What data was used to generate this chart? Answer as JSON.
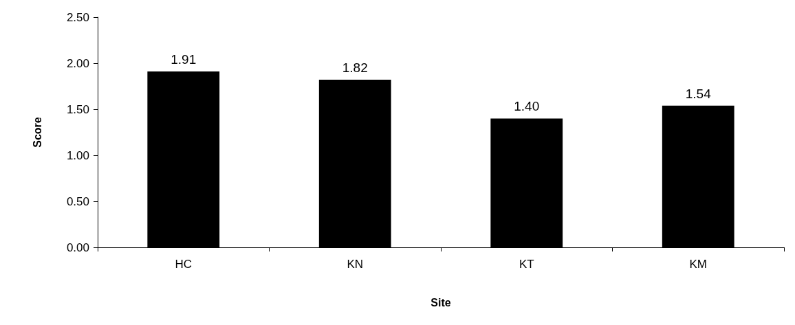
{
  "chart_data": {
    "type": "bar",
    "xlabel": "Site",
    "ylabel": "Score",
    "categories": [
      "HC",
      "KN",
      "KT",
      "KM"
    ],
    "values": [
      1.91,
      1.82,
      1.4,
      1.54
    ],
    "value_labels": [
      "1.91",
      "1.82",
      "1.40",
      "1.54"
    ],
    "color": "#000000",
    "ylim": [
      0,
      2.5
    ],
    "yticks": [
      {
        "value": 0,
        "label": "0.00"
      },
      {
        "value": 0.5,
        "label": "0.50"
      },
      {
        "value": 1,
        "label": "1.00"
      },
      {
        "value": 1.5,
        "label": "1.50"
      },
      {
        "value": 2,
        "label": "2.00"
      },
      {
        "value": 2.5,
        "label": "2.50"
      }
    ],
    "grid": false
  }
}
